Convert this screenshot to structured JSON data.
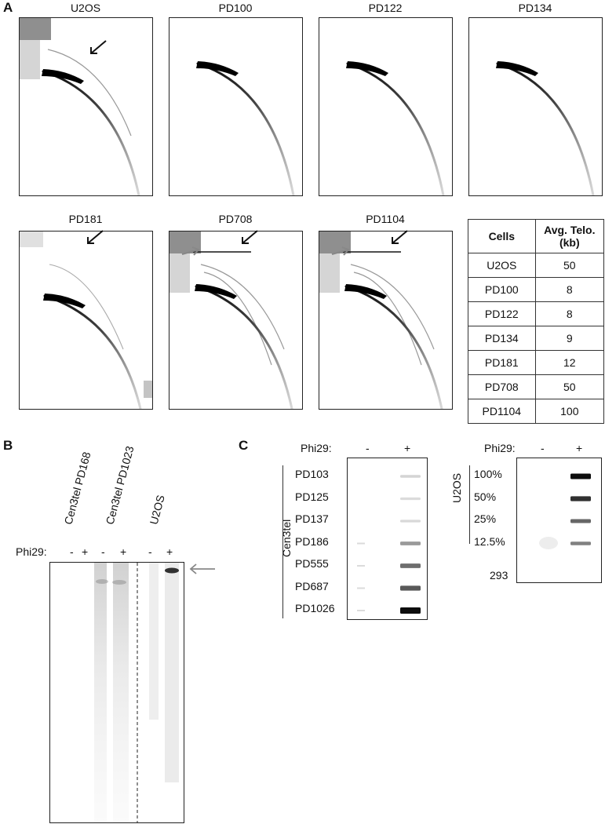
{
  "panels": {
    "a": "A",
    "b": "B",
    "c": "C"
  },
  "gels_a": [
    {
      "title": "U2OS",
      "black_arrow": true,
      "grey_arrow": false,
      "profile": "u2os"
    },
    {
      "title": "PD100",
      "black_arrow": false,
      "grey_arrow": false,
      "profile": "plain"
    },
    {
      "title": "PD122",
      "black_arrow": false,
      "grey_arrow": false,
      "profile": "plain"
    },
    {
      "title": "PD134",
      "black_arrow": false,
      "grey_arrow": false,
      "profile": "plain"
    },
    {
      "title": "PD181",
      "black_arrow": true,
      "grey_arrow": false,
      "profile": "pd181"
    },
    {
      "title": "PD708",
      "black_arrow": true,
      "grey_arrow": true,
      "profile": "alt"
    },
    {
      "title": "PD1104",
      "black_arrow": true,
      "grey_arrow": true,
      "profile": "alt"
    }
  ],
  "table": {
    "headers": [
      "Cells",
      "Avg. Telo. (kb)"
    ],
    "rows": [
      [
        "U2OS",
        "50"
      ],
      [
        "PD100",
        "8"
      ],
      [
        "PD122",
        "8"
      ],
      [
        "PD134",
        "9"
      ],
      [
        "PD181",
        "12"
      ],
      [
        "PD708",
        "50"
      ],
      [
        "PD1104",
        "100"
      ]
    ]
  },
  "panel_b": {
    "lane_groups": [
      "Cen3tel PD168",
      "Cen3tel PD1023",
      "U2OS"
    ],
    "phi_label": "Phi29:",
    "lane_signs": [
      "-",
      "+",
      "-",
      "+",
      "-",
      "+"
    ]
  },
  "panel_c": {
    "left": {
      "phi_label": "Phi29:",
      "signs": [
        "-",
        "+"
      ],
      "group_label": "Cen3tel",
      "rows": [
        "PD103",
        "PD125",
        "PD137",
        "PD186",
        "PD555",
        "PD687",
        "PD1026"
      ],
      "band_intensity": [
        0.08,
        0.05,
        0.06,
        0.35,
        0.55,
        0.65,
        1.0
      ]
    },
    "right": {
      "phi_label": "Phi29:",
      "signs": [
        "-",
        "+"
      ],
      "group_label": "U2OS",
      "rows": [
        "100%",
        "50%",
        "25%",
        "12.5%"
      ],
      "extra_label": "293",
      "band_intensity": [
        1.0,
        0.8,
        0.5,
        0.35
      ]
    }
  }
}
